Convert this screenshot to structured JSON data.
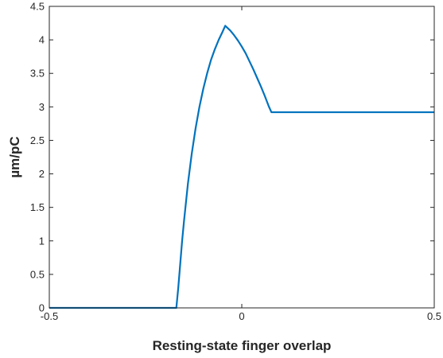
{
  "chart_data": {
    "type": "line",
    "title": "",
    "xlabel": "Resting-state finger overlap",
    "ylabel": "µm/pC",
    "xlim": [
      -0.5,
      0.5
    ],
    "ylim": [
      0,
      4.5
    ],
    "grid": false,
    "x_ticks": [
      -0.5,
      0,
      0.5
    ],
    "x_tick_labels": [
      "-0.5",
      "0",
      "0.5"
    ],
    "y_ticks": [
      0,
      0.5,
      1,
      1.5,
      2,
      2.5,
      3,
      3.5,
      4,
      4.5
    ],
    "y_tick_labels": [
      "0",
      "0.5",
      "1",
      "1.5",
      "2",
      "2.5",
      "3",
      "3.5",
      "4",
      "4.5"
    ],
    "colors": {
      "line": "#0072BD",
      "axis": "#262626"
    },
    "series": [
      {
        "x": [
          -0.5,
          -0.2,
          -0.17,
          -0.165,
          -0.16,
          -0.155,
          -0.15,
          -0.14,
          -0.13,
          -0.12,
          -0.11,
          -0.1,
          -0.09,
          -0.08,
          -0.07,
          -0.06,
          -0.05,
          -0.043,
          -0.03,
          -0.02,
          -0.01,
          0.0,
          0.01,
          0.02,
          0.03,
          0.04,
          0.05,
          0.06,
          0.07,
          0.077,
          0.1,
          0.2,
          0.3,
          0.4,
          0.5
        ],
        "y": [
          0,
          0,
          0,
          0.3,
          0.65,
          1.0,
          1.3,
          1.85,
          2.3,
          2.68,
          3.0,
          3.27,
          3.5,
          3.7,
          3.86,
          4.0,
          4.12,
          4.21,
          4.14,
          4.07,
          3.99,
          3.9,
          3.8,
          3.68,
          3.56,
          3.43,
          3.3,
          3.16,
          3.01,
          2.92,
          2.92,
          2.92,
          2.92,
          2.92,
          2.92
        ]
      }
    ]
  }
}
